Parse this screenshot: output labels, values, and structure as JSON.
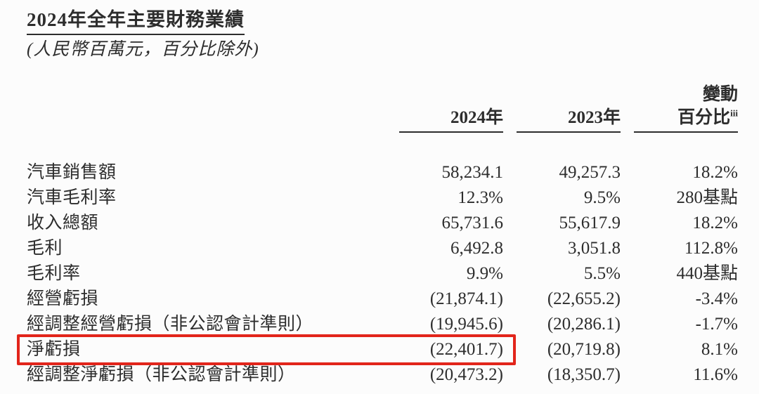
{
  "page": {
    "title": "2024年全年主要財務業績",
    "subtitle": "(人民幣百萬元，百分比除外)"
  },
  "table": {
    "headers": {
      "year_2024": "2024年",
      "year_2023": "2023年",
      "change_line1": "變動",
      "change_line2": "百分比",
      "change_footnote": "iii"
    },
    "rows": [
      {
        "label": "汽車銷售額",
        "y2024": "58,234.1",
        "y2023": "49,257.3",
        "change": "18.2%"
      },
      {
        "label": "汽車毛利率",
        "y2024": "12.3%",
        "y2023": "9.5%",
        "change": "280基點"
      },
      {
        "label": "收入總額",
        "y2024": "65,731.6",
        "y2023": "55,617.9",
        "change": "18.2%"
      },
      {
        "label": "毛利",
        "y2024": "6,492.8",
        "y2023": "3,051.8",
        "change": "112.8%"
      },
      {
        "label": "毛利率",
        "y2024": "9.9%",
        "y2023": "5.5%",
        "change": "440基點"
      },
      {
        "label": "經營虧損",
        "y2024": "(21,874.1)",
        "y2023": "(22,655.2)",
        "change": "-3.4%"
      },
      {
        "label": "經調整經營虧損（非公認會計準則）",
        "y2024": "(19,945.6)",
        "y2023": "(20,286.1)",
        "change": "-1.7%"
      },
      {
        "label": "淨虧損",
        "y2024": "(22,401.7)",
        "y2023": "(20,719.8)",
        "change": "8.1%"
      },
      {
        "label": "經調整淨虧損（非公認會計準則）",
        "y2024": "(20,473.2)",
        "y2023": "(18,350.7)",
        "change": "11.6%"
      }
    ],
    "highlight_color": "#e2251b"
  }
}
